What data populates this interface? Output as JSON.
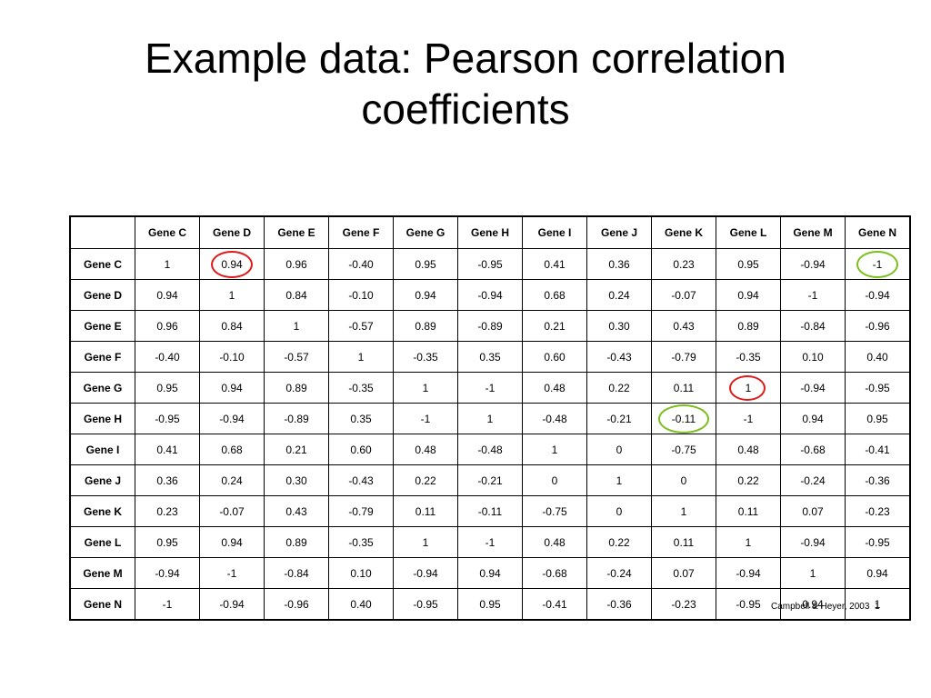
{
  "slide": {
    "title_line1": "Example data: Pearson correlation",
    "title_line2": "coefficients",
    "citation": "Campbell & Heyer, 2003",
    "page_number": "1"
  },
  "table": {
    "columns": [
      "Gene C",
      "Gene D",
      "Gene E",
      "Gene F",
      "Gene G",
      "Gene H",
      "Gene I",
      "Gene J",
      "Gene K",
      "Gene L",
      "Gene M",
      "Gene N"
    ],
    "rows": [
      {
        "label": "Gene C",
        "values": [
          "1",
          "0.94",
          "0.96",
          "-0.40",
          "0.95",
          "-0.95",
          "0.41",
          "0.36",
          "0.23",
          "0.95",
          "-0.94",
          "-1"
        ]
      },
      {
        "label": "Gene D",
        "values": [
          "0.94",
          "1",
          "0.84",
          "-0.10",
          "0.94",
          "-0.94",
          "0.68",
          "0.24",
          "-0.07",
          "0.94",
          "-1",
          "-0.94"
        ]
      },
      {
        "label": "Gene E",
        "values": [
          "0.96",
          "0.84",
          "1",
          "-0.57",
          "0.89",
          "-0.89",
          "0.21",
          "0.30",
          "0.43",
          "0.89",
          "-0.84",
          "-0.96"
        ]
      },
      {
        "label": "Gene F",
        "values": [
          "-0.40",
          "-0.10",
          "-0.57",
          "1",
          "-0.35",
          "0.35",
          "0.60",
          "-0.43",
          "-0.79",
          "-0.35",
          "0.10",
          "0.40"
        ]
      },
      {
        "label": "Gene G",
        "values": [
          "0.95",
          "0.94",
          "0.89",
          "-0.35",
          "1",
          "-1",
          "0.48",
          "0.22",
          "0.11",
          "1",
          "-0.94",
          "-0.95"
        ]
      },
      {
        "label": "Gene H",
        "values": [
          "-0.95",
          "-0.94",
          "-0.89",
          "0.35",
          "-1",
          "1",
          "-0.48",
          "-0.21",
          "-0.11",
          "-1",
          "0.94",
          "0.95"
        ]
      },
      {
        "label": "Gene I",
        "values": [
          "0.41",
          "0.68",
          "0.21",
          "0.60",
          "0.48",
          "-0.48",
          "1",
          "0",
          "-0.75",
          "0.48",
          "-0.68",
          "-0.41"
        ]
      },
      {
        "label": "Gene J",
        "values": [
          "0.36",
          "0.24",
          "0.30",
          "-0.43",
          "0.22",
          "-0.21",
          "0",
          "1",
          "0",
          "0.22",
          "-0.24",
          "-0.36"
        ]
      },
      {
        "label": "Gene K",
        "values": [
          "0.23",
          "-0.07",
          "0.43",
          "-0.79",
          "0.11",
          "-0.11",
          "-0.75",
          "0",
          "1",
          "0.11",
          "0.07",
          "-0.23"
        ]
      },
      {
        "label": "Gene L",
        "values": [
          "0.95",
          "0.94",
          "0.89",
          "-0.35",
          "1",
          "-1",
          "0.48",
          "0.22",
          "0.11",
          "1",
          "-0.94",
          "-0.95"
        ]
      },
      {
        "label": "Gene M",
        "values": [
          "-0.94",
          "-1",
          "-0.84",
          "0.10",
          "-0.94",
          "0.94",
          "-0.68",
          "-0.24",
          "0.07",
          "-0.94",
          "1",
          "0.94"
        ]
      },
      {
        "label": "Gene N",
        "values": [
          "-1",
          "-0.94",
          "-0.96",
          "0.40",
          "-0.95",
          "0.95",
          "-0.41",
          "-0.36",
          "-0.23",
          "-0.95",
          "0.94",
          "1"
        ]
      }
    ]
  },
  "highlights": [
    {
      "row": 0,
      "col": 1,
      "color": "#e01818"
    },
    {
      "row": 0,
      "col": 11,
      "color": "#7ac01a"
    },
    {
      "row": 4,
      "col": 9,
      "color": "#e01818"
    },
    {
      "row": 5,
      "col": 8,
      "color": "#7ac01a"
    }
  ]
}
